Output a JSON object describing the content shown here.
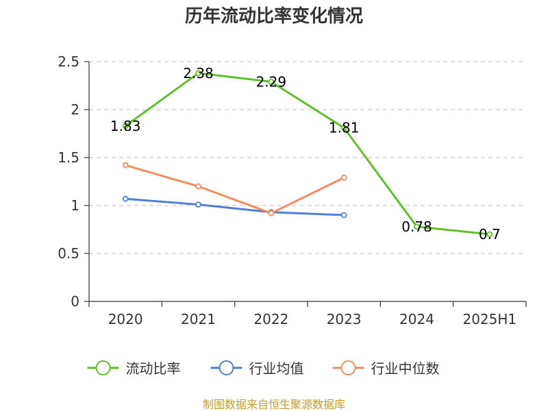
{
  "chart_data": {
    "type": "line",
    "title": "历年流动比率变化情况",
    "categories": [
      "2020",
      "2021",
      "2022",
      "2023",
      "2024",
      "2025H1"
    ],
    "ylim": [
      0,
      2.5
    ],
    "yticks": [
      "0",
      "0.5",
      "1",
      "1.5",
      "2",
      "2.5"
    ],
    "grid": true,
    "legend_position": "bottom",
    "series": [
      {
        "name": "流动比率",
        "color": "#5dc127",
        "values": [
          1.83,
          2.38,
          2.29,
          1.81,
          0.78,
          0.7
        ],
        "labels": [
          "1.83",
          "2.38",
          "2.29",
          "1.81",
          "0.78",
          "0.7"
        ]
      },
      {
        "name": "行业均值",
        "color": "#4f7fd8",
        "values": [
          1.07,
          1.01,
          0.93,
          0.9,
          null,
          null
        ]
      },
      {
        "name": "行业中位数",
        "color": "#f58c5a",
        "values": [
          1.42,
          1.2,
          0.92,
          1.29,
          null,
          null
        ]
      }
    ]
  },
  "source_note": "制图数据来自恒生聚源数据库"
}
